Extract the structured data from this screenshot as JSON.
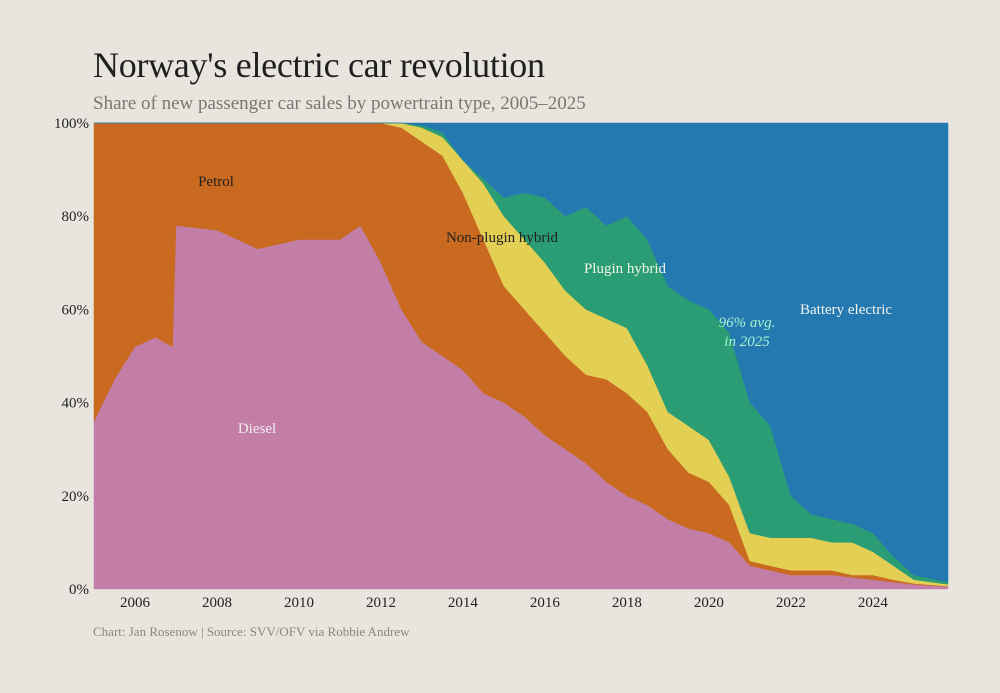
{
  "title": "Norway's electric car revolution",
  "subtitle": "Share of new passenger car sales by powertrain type, 2005–2025",
  "source": "Chart: Jan Rosenow  |  Source: SVV/OFV via Robbie Andrew",
  "chart_data": {
    "type": "area",
    "stacked": true,
    "xlim": [
      "2005-01",
      "2025-11"
    ],
    "ylim": [
      0,
      100
    ],
    "y_ticks": [
      "0%",
      "20%",
      "40%",
      "60%",
      "80%",
      "100%"
    ],
    "x_ticks": [
      "2006",
      "2008",
      "2010",
      "2012",
      "2014",
      "2016",
      "2018",
      "2020",
      "2022",
      "2024"
    ],
    "grid": false,
    "x": [
      "2005-01",
      "2005-07",
      "2006-01",
      "2006-07",
      "2006-12",
      "2007-01",
      "2008-01",
      "2009-01",
      "2010-01",
      "2011-01",
      "2011-07",
      "2012-01",
      "2012-07",
      "2013-01",
      "2013-07",
      "2014-01",
      "2014-07",
      "2015-01",
      "2015-07",
      "2016-01",
      "2016-07",
      "2017-01",
      "2017-07",
      "2018-01",
      "2018-07",
      "2019-01",
      "2019-07",
      "2020-01",
      "2020-07",
      "2021-01",
      "2021-07",
      "2022-01",
      "2022-07",
      "2023-01",
      "2023-07",
      "2024-01",
      "2024-07",
      "2025-01",
      "2025-11"
    ],
    "series": [
      {
        "name": "Diesel",
        "color": "#c27ea6",
        "label_color": "#f4eef2",
        "values": [
          36,
          45,
          52,
          54,
          52,
          78,
          77,
          73,
          75,
          75,
          78,
          70,
          60,
          53,
          50,
          47,
          42,
          40,
          37,
          33,
          30,
          27,
          23,
          20,
          18,
          15,
          13,
          12,
          10,
          5,
          4,
          3,
          3,
          3,
          2.5,
          2,
          1.5,
          1,
          0.5
        ]
      },
      {
        "name": "Petrol",
        "color": "#c96a20",
        "label_color": "#1f1f1f",
        "values": [
          64,
          55,
          48,
          46,
          48,
          22,
          23,
          27,
          25,
          25,
          22,
          30,
          39,
          43,
          43,
          38,
          33,
          25,
          23,
          22,
          20,
          19,
          22,
          22,
          20,
          15,
          12,
          11,
          8,
          1,
          1,
          1,
          1,
          1,
          0.5,
          1,
          0.5,
          0.2,
          0.1
        ]
      },
      {
        "name": "Non-plugin hybrid",
        "color": "#e4cf55",
        "label_color": "#1f1f1f",
        "values": [
          0,
          0,
          0,
          0,
          0,
          0,
          0,
          0,
          0,
          0,
          0,
          0,
          1,
          3,
          4,
          7,
          12,
          15,
          15,
          15,
          14,
          14,
          13,
          14,
          10,
          8,
          10,
          9,
          6,
          6,
          6,
          7,
          7,
          6,
          7,
          5,
          3,
          0.8,
          0.4
        ]
      },
      {
        "name": "Plugin hybrid",
        "color": "#2a9d74",
        "label_color": "#f2f2ea",
        "values": [
          0,
          0,
          0,
          0,
          0,
          0,
          0,
          0,
          0,
          0,
          0,
          0,
          0,
          0.5,
          1,
          0,
          1,
          4,
          10,
          14,
          16,
          22,
          20,
          24,
          27,
          27,
          27,
          28,
          31,
          28,
          24,
          9,
          5,
          5,
          4,
          4,
          2,
          1,
          0.5
        ]
      },
      {
        "name": "Battery electric",
        "color": "#2479b0",
        "label_color": "#f2f2ea",
        "values": [
          0,
          0,
          0,
          0,
          0,
          0,
          0,
          0,
          0,
          0,
          0,
          0,
          0,
          0.5,
          2,
          8,
          12,
          16,
          15,
          16,
          20,
          18,
          22,
          20,
          25,
          35,
          38,
          40,
          45,
          60,
          65,
          80,
          84,
          85,
          86,
          88,
          93,
          97,
          98.5
        ]
      }
    ],
    "annotations": [
      {
        "text_line1": "96% avg.",
        "text_line2": "in 2025",
        "color": "#a8f0cf"
      }
    ]
  }
}
